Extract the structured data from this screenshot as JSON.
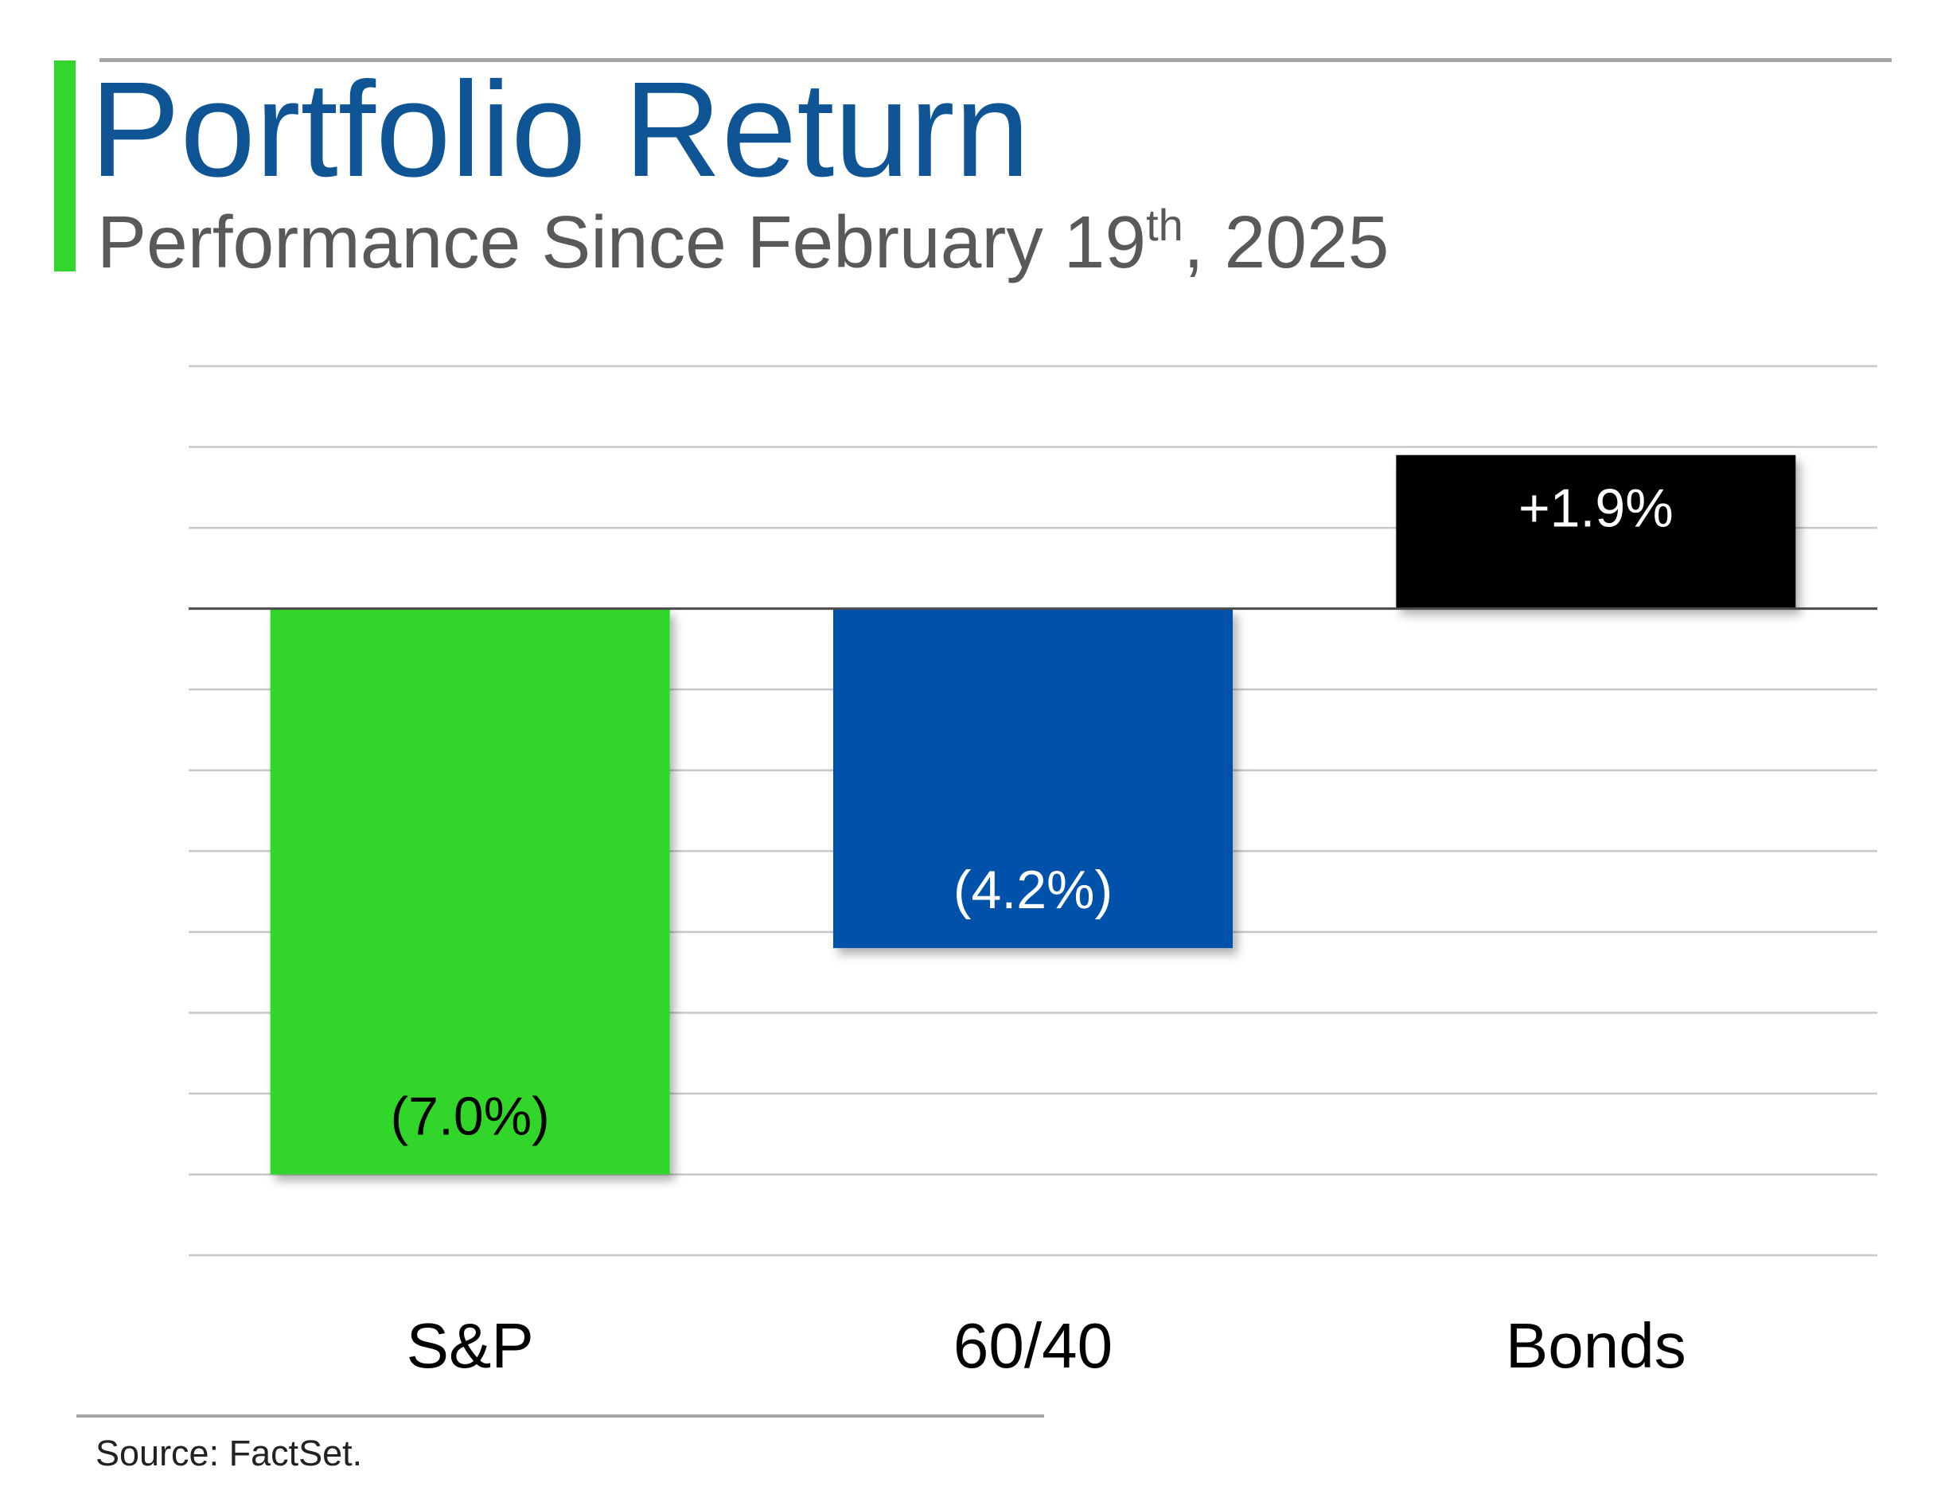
{
  "header": {
    "title": "Portfolio Return",
    "subtitle_main": "Performance Since February 19",
    "subtitle_sup": "th",
    "subtitle_end": ", 2025"
  },
  "footer": {
    "source": "Source: FactSet."
  },
  "colors": {
    "accent": "#33d62c",
    "title": "#0f5595",
    "bar_sp": "#33d62c",
    "bar_6040": "#0051aa",
    "bar_bonds": "#000000"
  },
  "chart_data": {
    "type": "bar",
    "title": "Portfolio Return",
    "subtitle": "Performance Since February 19th, 2025",
    "categories": [
      "S&P",
      "60/40",
      "Bonds"
    ],
    "values": [
      -7.0,
      -4.2,
      1.9
    ],
    "data_labels": [
      "(7.0%)",
      "(4.2%)",
      "+1.9%"
    ],
    "label_colors": [
      "#000000",
      "#ffffff",
      "#ffffff"
    ],
    "bar_colors": [
      "#33d62c",
      "#0051aa",
      "#000000"
    ],
    "xlabel": "",
    "ylabel": "",
    "ylim": [
      -8,
      3
    ],
    "grid_step": 1,
    "grid": true,
    "legend": "none"
  }
}
